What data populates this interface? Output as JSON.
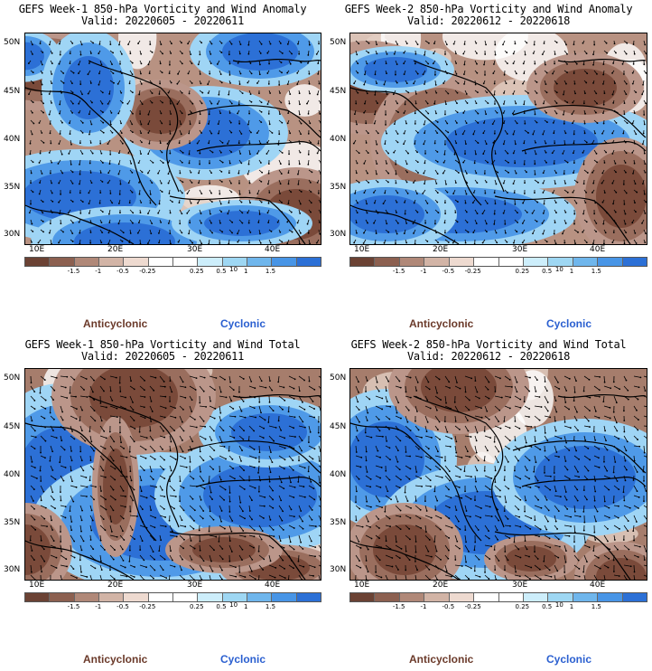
{
  "panels": [
    {
      "title": "GEFS Week-1 850-hPa Vorticity and Wind Anomaly",
      "valid": "Valid: 20220605 - 20220611",
      "variant": "anom1"
    },
    {
      "title": "GEFS Week-2 850-hPa Vorticity and Wind Anomaly",
      "valid": "Valid: 20220612 - 20220618",
      "variant": "anom2"
    },
    {
      "title": "GEFS Week-1 850-hPa Vorticity and Wind Total",
      "valid": "Valid: 20220605 - 20220611",
      "variant": "tot1"
    },
    {
      "title": "GEFS Week-2 850-hPa Vorticity and Wind Total",
      "valid": "Valid: 20220612 - 20220618",
      "variant": "tot2"
    }
  ],
  "axes": {
    "lat_labels": [
      "50N",
      "45N",
      "40N",
      "35N",
      "30N"
    ],
    "lon_labels": [
      "10E",
      "20E",
      "30E",
      "40E"
    ]
  },
  "colorbar": {
    "labels": [
      "-1.5",
      "-1",
      "-0.5",
      "-0.25",
      "0.25",
      "0.5",
      "1",
      "1.5"
    ],
    "unit_mark": "10",
    "colors": [
      "#6b4234",
      "#8c6050",
      "#b08878",
      "#d2b4a6",
      "#eedad0",
      "#ffffff",
      "#ffffff",
      "#cdeefb",
      "#9ed7f3",
      "#6fb6ec",
      "#4895e6",
      "#2c70d6"
    ]
  },
  "legend": {
    "anticyclonic": "Anticyclonic",
    "cyclonic": "Cyclonic",
    "anticyclonic_color": "#6b3a2a",
    "cyclonic_color": "#2a5fd0"
  }
}
